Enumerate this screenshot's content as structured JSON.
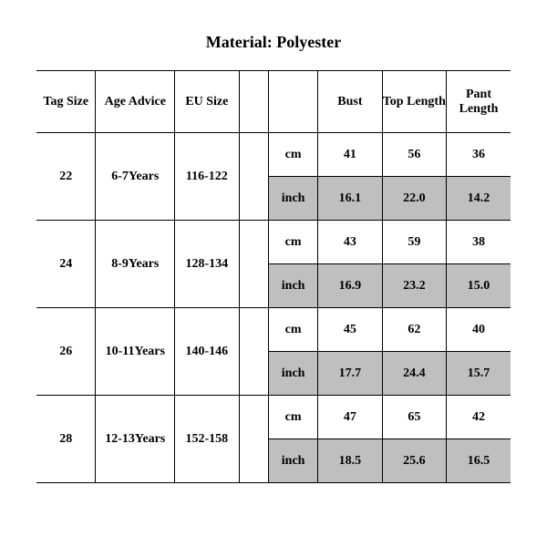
{
  "title": "Material: Polyester",
  "table": {
    "columns": [
      "Tag Size",
      "Age Advice",
      "EU Size",
      "",
      "",
      "Bust",
      "Top Length",
      "Pant Length"
    ],
    "unit_labels": {
      "cm": "cm",
      "inch": "inch"
    },
    "rows": [
      {
        "tag_size": "22",
        "age": "6-7Years",
        "eu": "116-122",
        "cm": {
          "bust": "41",
          "top": "56",
          "pant": "36"
        },
        "inch": {
          "bust": "16.1",
          "top": "22.0",
          "pant": "14.2"
        }
      },
      {
        "tag_size": "24",
        "age": "8-9Years",
        "eu": "128-134",
        "cm": {
          "bust": "43",
          "top": "59",
          "pant": "38"
        },
        "inch": {
          "bust": "16.9",
          "top": "23.2",
          "pant": "15.0"
        }
      },
      {
        "tag_size": "26",
        "age": "10-11Years",
        "eu": "140-146",
        "cm": {
          "bust": "45",
          "top": "62",
          "pant": "40"
        },
        "inch": {
          "bust": "17.7",
          "top": "24.4",
          "pant": "15.7"
        }
      },
      {
        "tag_size": "28",
        "age": "12-13Years",
        "eu": "152-158",
        "cm": {
          "bust": "47",
          "top": "65",
          "pant": "42"
        },
        "inch": {
          "bust": "18.5",
          "top": "25.6",
          "pant": "16.5"
        }
      }
    ],
    "colors": {
      "shaded_bg": "#bfbfbf",
      "border": "#000000",
      "page_bg": "#ffffff"
    },
    "font": {
      "family": "Times New Roman",
      "header_size_pt": 14,
      "cell_size_pt": 14,
      "title_size_pt": 18,
      "weight": "bold"
    }
  }
}
